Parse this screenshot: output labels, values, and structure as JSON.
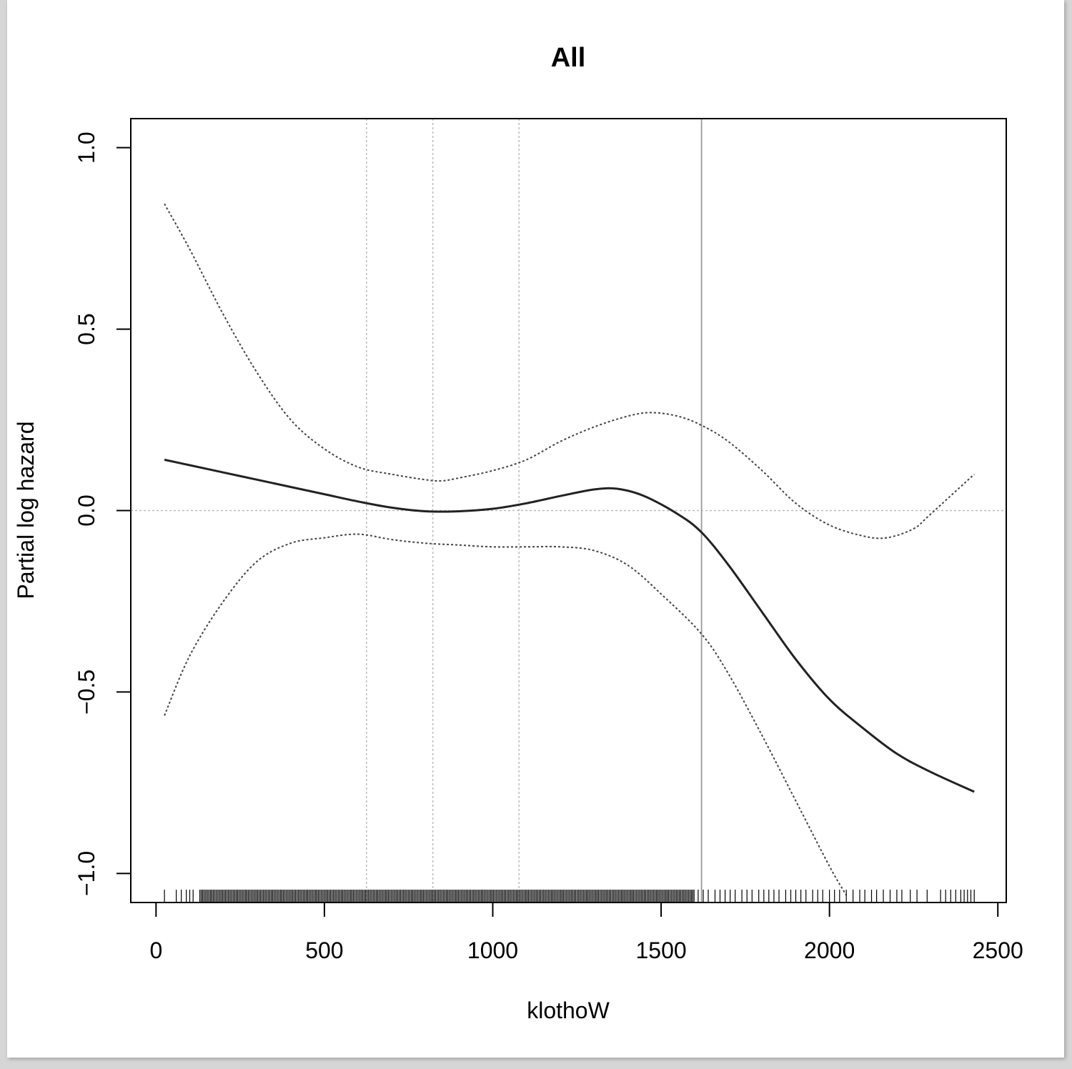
{
  "chart_data": {
    "type": "line",
    "title": "All",
    "xlabel": "klothoW",
    "ylabel": "Partial log hazard",
    "xlim": [
      -75,
      2525
    ],
    "ylim": [
      -1.08,
      1.08
    ],
    "x_ticks": [
      0,
      500,
      1000,
      1500,
      2000,
      2500
    ],
    "x_tick_labels": [
      "0",
      "500",
      "1000",
      "1500",
      "2000",
      "2500"
    ],
    "y_ticks": [
      -1.0,
      -0.5,
      0.0,
      0.5,
      1.0
    ],
    "y_tick_labels": [
      "−1.0",
      "−0.5",
      "0.0",
      "0.5",
      "1.0"
    ],
    "reference_lines": {
      "horizontal_dotted_y": 0.0,
      "vertical_dotted_x": [
        625,
        822,
        1078
      ],
      "vertical_solid_x": 1620
    },
    "grid": false,
    "colors": {
      "fit": "#222222",
      "ci": "#444444",
      "reference": "#bbbbbb",
      "cutpoint": "#9a9a9a"
    },
    "series": [
      {
        "style": "solid",
        "x": [
          25,
          100,
          200,
          300,
          400,
          500,
          600,
          700,
          800,
          900,
          1000,
          1100,
          1200,
          1300,
          1370,
          1450,
          1550,
          1620,
          1700,
          1800,
          1900,
          2000,
          2100,
          2200,
          2300,
          2430
        ],
        "y": [
          0.14,
          0.125,
          0.105,
          0.085,
          0.065,
          0.045,
          0.025,
          0.008,
          -0.002,
          -0.002,
          0.005,
          0.02,
          0.04,
          0.058,
          0.06,
          0.04,
          -0.01,
          -0.06,
          -0.15,
          -0.28,
          -0.41,
          -0.52,
          -0.6,
          -0.67,
          -0.72,
          -0.775
        ]
      },
      {
        "style": "dotted",
        "x": [
          25,
          100,
          200,
          300,
          400,
          500,
          600,
          700,
          800,
          850,
          900,
          1000,
          1100,
          1200,
          1300,
          1400,
          1470,
          1550,
          1620,
          1700,
          1800,
          1900,
          2000,
          2100,
          2170,
          2250,
          2300,
          2430
        ],
        "y": [
          0.845,
          0.72,
          0.54,
          0.38,
          0.25,
          0.17,
          0.12,
          0.1,
          0.085,
          0.082,
          0.09,
          0.11,
          0.14,
          0.19,
          0.23,
          0.26,
          0.27,
          0.26,
          0.235,
          0.19,
          0.11,
          0.02,
          -0.04,
          -0.07,
          -0.075,
          -0.05,
          -0.01,
          0.1
        ]
      },
      {
        "style": "dotted",
        "x": [
          25,
          100,
          200,
          300,
          400,
          500,
          600,
          700,
          800,
          900,
          1000,
          1100,
          1200,
          1300,
          1400,
          1500,
          1620,
          1700,
          1800,
          1900,
          2000,
          2050
        ],
        "y": [
          -0.565,
          -0.4,
          -0.25,
          -0.14,
          -0.09,
          -0.075,
          -0.065,
          -0.08,
          -0.09,
          -0.095,
          -0.1,
          -0.1,
          -0.1,
          -0.11,
          -0.15,
          -0.23,
          -0.34,
          -0.45,
          -0.62,
          -0.8,
          -0.98,
          -1.06
        ]
      }
    ],
    "rug": {
      "dense_from": 130,
      "dense_to": 1600,
      "sparse_x": [
        25,
        60,
        75,
        90,
        100,
        110,
        1610,
        1625,
        1640,
        1660,
        1675,
        1690,
        1705,
        1720,
        1740,
        1755,
        1770,
        1790,
        1805,
        1820,
        1835,
        1850,
        1870,
        1885,
        1900,
        1915,
        1930,
        1950,
        1965,
        1980,
        2000,
        2015,
        2030,
        2050,
        2070,
        2090,
        2105,
        2125,
        2140,
        2160,
        2180,
        2200,
        2215,
        2240,
        2260,
        2290,
        2330,
        2345,
        2360,
        2375,
        2390,
        2400,
        2410,
        2420,
        2430
      ]
    }
  }
}
